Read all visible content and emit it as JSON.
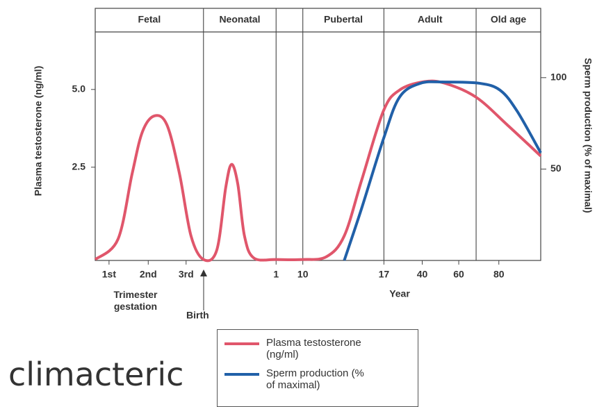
{
  "chart_data": {
    "type": "line",
    "phases": {
      "labels": [
        "Fetal",
        "Neonatal",
        null,
        "Pubertal",
        "Adult",
        "Old age"
      ],
      "boundaries": [
        24.3,
        40.6,
        46.6,
        64.8,
        85.5
      ]
    },
    "xlabel": "Year",
    "annotations": {
      "trimester": "Trimester gestation",
      "birth": "Birth"
    },
    "xlim": [
      0,
      100
    ],
    "xticks": [
      {
        "value": 3.1,
        "label": "1st"
      },
      {
        "value": 11.9,
        "label": "2nd"
      },
      {
        "value": 20.4,
        "label": "3rd"
      },
      {
        "value": 40.6,
        "label": "1"
      },
      {
        "value": 46.6,
        "label": "10"
      },
      {
        "value": 64.8,
        "label": "17"
      },
      {
        "value": 73.4,
        "label": "40"
      },
      {
        "value": 81.6,
        "label": "60"
      },
      {
        "value": 90.6,
        "label": "80"
      }
    ],
    "ylabel": "Plasma testosterone (ng/ml)",
    "ylim": [
      -0.5,
      6.85
    ],
    "yticks": [
      2.5,
      {
        "value": 5,
        "label": "5.0"
      }
    ],
    "y2label": "Sperm production (% of maximal)",
    "y2lim": [
      0,
      125
    ],
    "y2ticks": [
      50,
      100
    ],
    "series": [
      {
        "name": "Plasma testosterone (ng/ml)",
        "color": "#e0566b",
        "x": [
          0,
          5.1,
          8.3,
          10.6,
          13.3,
          16.1,
          18.9,
          21.5,
          24.3,
          27.3,
          29.3,
          30.6,
          32.0,
          33.5,
          35.6,
          40.6,
          46.6,
          51.9,
          55.9,
          59.8,
          64.7,
          68.3,
          73.8,
          78.5,
          85.5,
          92.5,
          100
        ],
        "values": [
          -0.47,
          0.18,
          2.3,
          3.64,
          4.15,
          3.86,
          2.3,
          0.29,
          -0.47,
          -0.16,
          1.85,
          2.59,
          1.96,
          0.29,
          -0.42,
          -0.47,
          -0.47,
          -0.38,
          0.29,
          2.08,
          4.31,
          4.98,
          5.25,
          5.2,
          4.75,
          3.86,
          2.86
        ]
      },
      {
        "name": "Sperm production (% of maximal)",
        "color": "#2160a8",
        "axis": "y2",
        "x": [
          55.9,
          59.8,
          64.7,
          68.3,
          73.0,
          78.5,
          86.3,
          90.9,
          94.7,
          100
        ],
        "values": [
          0,
          28.5,
          66.5,
          89.3,
          96.9,
          97.6,
          96.9,
          93.1,
          81.7,
          58.9
        ]
      }
    ]
  },
  "overlay_text": "climacteric"
}
